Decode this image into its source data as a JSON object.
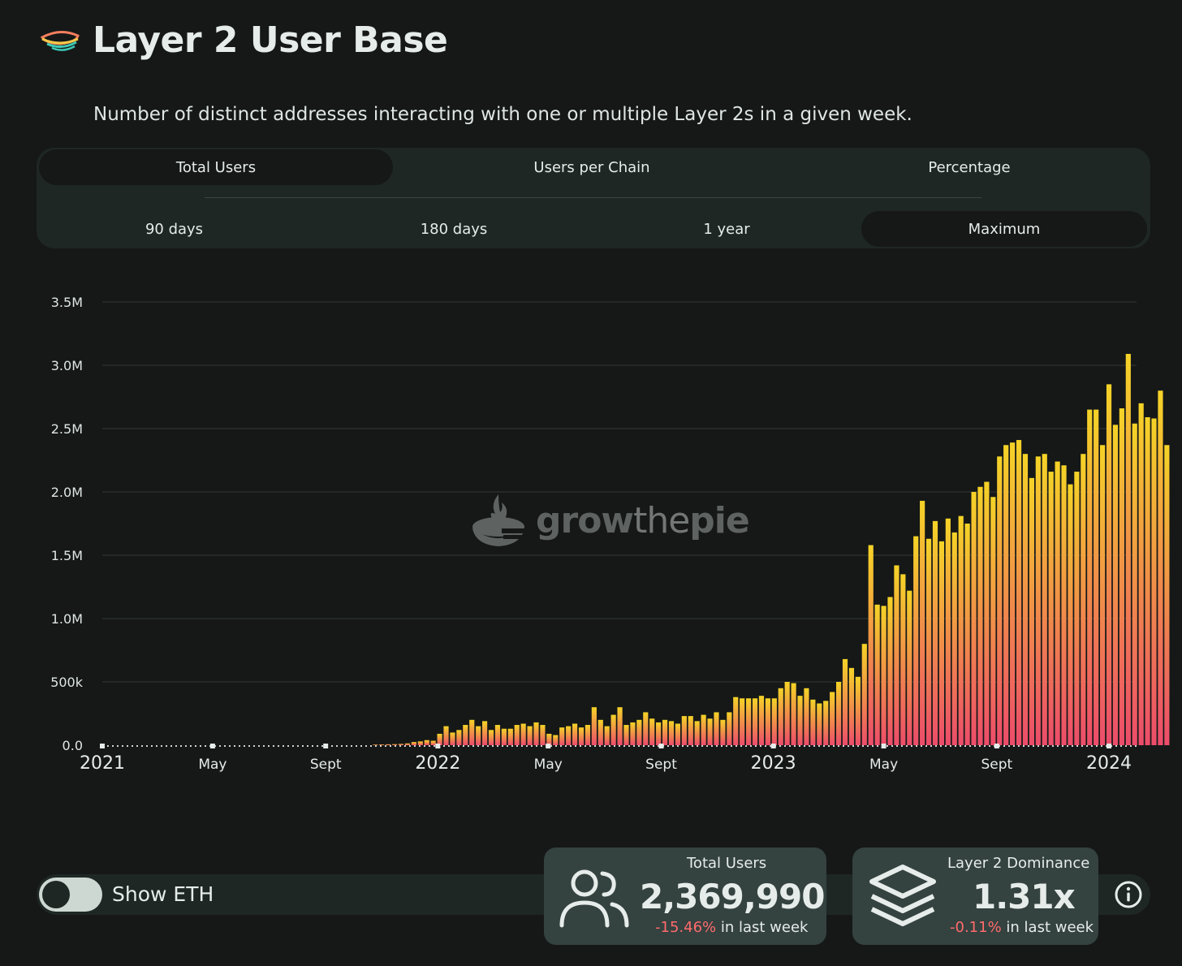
{
  "header": {
    "title": "Layer 2 User Base",
    "subtitle": "Number of distinct addresses interacting with one or multiple Layer 2s in a given week."
  },
  "metric_tabs": [
    {
      "label": "Total Users",
      "active": true
    },
    {
      "label": "Users per Chain",
      "active": false
    },
    {
      "label": "Percentage",
      "active": false
    }
  ],
  "timespan_tabs": [
    {
      "label": "90 days",
      "active": false
    },
    {
      "label": "180 days",
      "active": false
    },
    {
      "label": "1 year",
      "active": false
    },
    {
      "label": "Maximum",
      "active": true
    }
  ],
  "watermark": {
    "text_bold1": "grow",
    "text_thin": "the",
    "text_bold2": "pie"
  },
  "chart_data": {
    "type": "bar",
    "y_ticks": [
      "0.0",
      "500k",
      "1.0M",
      "1.5M",
      "2.0M",
      "2.5M",
      "3.0M",
      "3.5M"
    ],
    "ylim": [
      0,
      3500000
    ],
    "x_ticks": [
      {
        "label": "2021",
        "major": true
      },
      {
        "label": "May",
        "major": false
      },
      {
        "label": "Sept",
        "major": false
      },
      {
        "label": "2022",
        "major": true
      },
      {
        "label": "May",
        "major": false
      },
      {
        "label": "Sept",
        "major": false
      },
      {
        "label": "2023",
        "major": true
      },
      {
        "label": "May",
        "major": false
      },
      {
        "label": "Sept",
        "major": false
      },
      {
        "label": "2024",
        "major": true
      }
    ],
    "x_range": [
      "2021-01-01",
      "2024-01-31"
    ],
    "bar_start": "2021-10-25",
    "bar_interval_days": 7,
    "colors": {
      "top": "#f5d327",
      "bottom": "#ec4c6a"
    },
    "values": [
      5000,
      6000,
      7000,
      8000,
      10000,
      14000,
      25000,
      30000,
      40000,
      35000,
      90000,
      150000,
      100000,
      120000,
      160000,
      200000,
      150000,
      190000,
      120000,
      160000,
      130000,
      130000,
      160000,
      170000,
      150000,
      180000,
      160000,
      90000,
      80000,
      140000,
      150000,
      170000,
      140000,
      160000,
      300000,
      200000,
      150000,
      240000,
      300000,
      160000,
      180000,
      200000,
      260000,
      210000,
      180000,
      200000,
      190000,
      170000,
      230000,
      230000,
      190000,
      240000,
      210000,
      260000,
      200000,
      260000,
      380000,
      370000,
      370000,
      370000,
      390000,
      370000,
      370000,
      450000,
      500000,
      490000,
      390000,
      450000,
      360000,
      330000,
      350000,
      420000,
      500000,
      680000,
      610000,
      540000,
      800000,
      1580000,
      1110000,
      1100000,
      1170000,
      1420000,
      1350000,
      1220000,
      1650000,
      1930000,
      1630000,
      1770000,
      1610000,
      1790000,
      1680000,
      1810000,
      1750000,
      2000000,
      2040000,
      2080000,
      1960000,
      2280000,
      2370000,
      2390000,
      2410000,
      2300000,
      2110000,
      2280000,
      2300000,
      2160000,
      2240000,
      2210000,
      2060000,
      2160000,
      2300000,
      2650000,
      2650000,
      2370000,
      2850000,
      2530000,
      2660000,
      3090000,
      2540000,
      2700000,
      2590000,
      2580000,
      2800000,
      2370000
    ]
  },
  "show_eth": {
    "label": "Show ETH",
    "on": false
  },
  "cards": [
    {
      "label": "Total Users",
      "value": "2,369,990",
      "change": "-15.46%",
      "change_suffix": " in last week",
      "icon": "users-icon"
    },
    {
      "label": "Layer 2 Dominance",
      "value": "1.31x",
      "change": "-0.11%",
      "change_suffix": " in last week",
      "icon": "layers-icon"
    }
  ]
}
